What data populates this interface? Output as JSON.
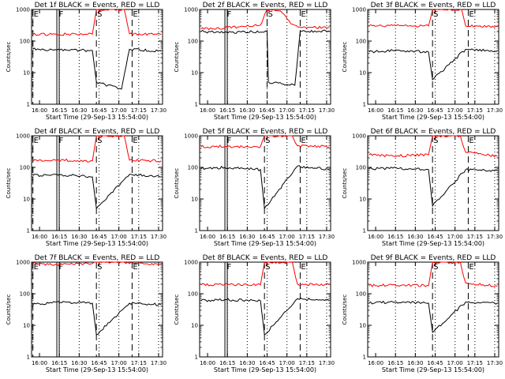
{
  "chart_data": [
    {
      "type": "line",
      "title": "Det 1f BLACK = Events, RED = LLD",
      "xlabel": "Start Time (29-Sep-13 15:54:00)",
      "ylabel": "Counts/sec",
      "y_scale": "log",
      "ylim": [
        1,
        1000
      ],
      "y_ticks": [
        "1",
        "10",
        "100",
        "1000"
      ],
      "x_ticks": [
        "16:00",
        "16:15",
        "16:30",
        "16:45",
        "17:00",
        "17:15",
        "17:30"
      ],
      "markers": [
        {
          "label": "E",
          "at": "15:55"
        },
        {
          "label": "F",
          "at": "16:14"
        },
        {
          "label": "S",
          "at": "16:43"
        },
        {
          "label": "E",
          "at": "17:10"
        }
      ],
      "series": [
        {
          "color": "#000000",
          "values": [
            {
              "x": "15:55",
              "y": 55
            },
            {
              "x": "16:13",
              "y": 52
            },
            {
              "x": "16:40",
              "y": 50
            },
            {
              "x": "16:43",
              "y": 5
            },
            {
              "x": "17:02",
              "y": 3
            },
            {
              "x": "17:08",
              "y": 55
            },
            {
              "x": "17:32",
              "y": 48
            }
          ]
        },
        {
          "color": "#ff0000",
          "values": [
            {
              "x": "15:55",
              "y": 160
            },
            {
              "x": "16:13",
              "y": 165
            },
            {
              "x": "16:40",
              "y": 165
            },
            {
              "x": "16:43",
              "y": 1000
            },
            {
              "x": "17:04",
              "y": 1000
            },
            {
              "x": "17:08",
              "y": 170
            },
            {
              "x": "17:32",
              "y": 160
            }
          ]
        }
      ]
    },
    {
      "type": "line",
      "title": "Det 2f BLACK = Events, RED = LLD",
      "xlabel": "Start Time (29-Sep-13 15:54:00)",
      "ylabel": "Counts/sec",
      "y_scale": "log",
      "ylim": [
        1,
        1000
      ],
      "y_ticks": [
        "1",
        "10",
        "100",
        "1000"
      ],
      "x_ticks": [
        "16:00",
        "16:15",
        "16:30",
        "16:45",
        "17:00",
        "17:15",
        "17:30"
      ],
      "markers": [
        {
          "label": "F",
          "at": "16:14"
        },
        {
          "label": "S",
          "at": "16:45"
        },
        {
          "label": "E",
          "at": "17:10"
        }
      ],
      "series": [
        {
          "color": "#000000",
          "values": [
            {
              "x": "15:55",
              "y": 200
            },
            {
              "x": "16:13",
              "y": 190
            },
            {
              "x": "16:45",
              "y": 200
            },
            {
              "x": "16:46",
              "y": 5
            },
            {
              "x": "17:06",
              "y": 4
            },
            {
              "x": "17:10",
              "y": 200
            },
            {
              "x": "17:32",
              "y": 210
            }
          ]
        },
        {
          "color": "#ff0000",
          "values": [
            {
              "x": "15:55",
              "y": 240
            },
            {
              "x": "16:13",
              "y": 260
            },
            {
              "x": "16:40",
              "y": 320
            },
            {
              "x": "16:45",
              "y": 1000
            },
            {
              "x": "16:55",
              "y": 900
            },
            {
              "x": "17:03",
              "y": 350
            },
            {
              "x": "17:10",
              "y": 280
            },
            {
              "x": "17:32",
              "y": 270
            }
          ]
        }
      ]
    },
    {
      "type": "line",
      "title": "Det 3f BLACK = Events, RED = LLD",
      "xlabel": "Start Time (29-Sep-13 15:54:00)",
      "ylabel": "Counts/sec",
      "y_scale": "log",
      "ylim": [
        1,
        1000
      ],
      "y_ticks": [
        "1",
        "10",
        "100",
        "1000"
      ],
      "x_ticks": [
        "16:00",
        "16:15",
        "16:30",
        "16:45",
        "17:00",
        "17:15",
        "17:30"
      ],
      "markers": [
        {
          "label": "S",
          "at": "16:43"
        },
        {
          "label": "E",
          "at": "17:10"
        }
      ],
      "series": [
        {
          "color": "#000000",
          "values": [
            {
              "x": "15:55",
              "y": 45
            },
            {
              "x": "16:13",
              "y": 50
            },
            {
              "x": "16:40",
              "y": 45
            },
            {
              "x": "16:43",
              "y": 6
            },
            {
              "x": "17:08",
              "y": 55
            },
            {
              "x": "17:32",
              "y": 48
            }
          ]
        },
        {
          "color": "#ff0000",
          "values": [
            {
              "x": "15:55",
              "y": 300
            },
            {
              "x": "16:13",
              "y": 310
            },
            {
              "x": "16:40",
              "y": 300
            },
            {
              "x": "16:43",
              "y": 1000
            },
            {
              "x": "17:05",
              "y": 1000
            },
            {
              "x": "17:08",
              "y": 300
            },
            {
              "x": "17:32",
              "y": 280
            }
          ]
        }
      ]
    },
    {
      "type": "line",
      "title": "Det 4f BLACK = Events, RED = LLD",
      "xlabel": "Start Time (29-Sep-13 15:54:00)",
      "ylabel": "Counts/sec",
      "y_scale": "log",
      "ylim": [
        1,
        1000
      ],
      "y_ticks": [
        "1",
        "10",
        "100",
        "1000"
      ],
      "x_ticks": [
        "16:00",
        "16:15",
        "16:30",
        "16:45",
        "17:00",
        "17:15",
        "17:30"
      ],
      "markers": [
        {
          "label": "E",
          "at": "15:55"
        },
        {
          "label": "F",
          "at": "16:14"
        },
        {
          "label": "S",
          "at": "16:43"
        },
        {
          "label": "E",
          "at": "17:10"
        }
      ],
      "series": [
        {
          "color": "#000000",
          "values": [
            {
              "x": "15:55",
              "y": 55
            },
            {
              "x": "16:13",
              "y": 60
            },
            {
              "x": "16:40",
              "y": 50
            },
            {
              "x": "16:43",
              "y": 5
            },
            {
              "x": "17:08",
              "y": 60
            },
            {
              "x": "17:32",
              "y": 50
            }
          ]
        },
        {
          "color": "#ff0000",
          "values": [
            {
              "x": "15:55",
              "y": 160
            },
            {
              "x": "16:13",
              "y": 170
            },
            {
              "x": "16:40",
              "y": 160
            },
            {
              "x": "16:43",
              "y": 1000
            },
            {
              "x": "17:04",
              "y": 1000
            },
            {
              "x": "17:08",
              "y": 170
            },
            {
              "x": "17:32",
              "y": 160
            }
          ]
        }
      ]
    },
    {
      "type": "line",
      "title": "Det 5f BLACK = Events, RED = LLD",
      "xlabel": "Start Time (29-Sep-13 15:54:00)",
      "ylabel": "Counts/sec",
      "y_scale": "log",
      "ylim": [
        1,
        1000
      ],
      "y_ticks": [
        "1",
        "10",
        "100",
        "1000"
      ],
      "x_ticks": [
        "16:00",
        "16:15",
        "16:30",
        "16:45",
        "17:00",
        "17:15",
        "17:30"
      ],
      "markers": [
        {
          "label": "F",
          "at": "16:14"
        },
        {
          "label": "S",
          "at": "16:43"
        },
        {
          "label": "E",
          "at": "17:10"
        }
      ],
      "series": [
        {
          "color": "#000000",
          "values": [
            {
              "x": "15:55",
              "y": 90
            },
            {
              "x": "16:13",
              "y": 100
            },
            {
              "x": "16:40",
              "y": 85
            },
            {
              "x": "16:43",
              "y": 5
            },
            {
              "x": "17:08",
              "y": 110
            },
            {
              "x": "17:32",
              "y": 85
            }
          ]
        },
        {
          "color": "#ff0000",
          "values": [
            {
              "x": "15:55",
              "y": 450
            },
            {
              "x": "16:13",
              "y": 460
            },
            {
              "x": "16:40",
              "y": 450
            },
            {
              "x": "16:43",
              "y": 1000
            },
            {
              "x": "17:04",
              "y": 1000
            },
            {
              "x": "17:08",
              "y": 480
            },
            {
              "x": "17:32",
              "y": 450
            }
          ]
        }
      ]
    },
    {
      "type": "line",
      "title": "Det 6f BLACK = Events, RED = LLD",
      "xlabel": "Start Time (29-Sep-13 15:54:00)",
      "ylabel": "Counts/sec",
      "y_scale": "log",
      "ylim": [
        1,
        1000
      ],
      "y_ticks": [
        "1",
        "10",
        "100",
        "1000"
      ],
      "x_ticks": [
        "16:00",
        "16:15",
        "16:30",
        "16:45",
        "17:00",
        "17:15",
        "17:30"
      ],
      "markers": [
        {
          "label": "S",
          "at": "16:43"
        },
        {
          "label": "E",
          "at": "17:10"
        }
      ],
      "series": [
        {
          "color": "#000000",
          "values": [
            {
              "x": "15:55",
              "y": 90
            },
            {
              "x": "16:13",
              "y": 95
            },
            {
              "x": "16:40",
              "y": 85
            },
            {
              "x": "16:43",
              "y": 6
            },
            {
              "x": "17:08",
              "y": 85
            },
            {
              "x": "17:32",
              "y": 80
            }
          ]
        },
        {
          "color": "#ff0000",
          "values": [
            {
              "x": "15:55",
              "y": 250
            },
            {
              "x": "16:13",
              "y": 230
            },
            {
              "x": "16:40",
              "y": 250
            },
            {
              "x": "16:43",
              "y": 1000
            },
            {
              "x": "17:04",
              "y": 1000
            },
            {
              "x": "17:08",
              "y": 300
            },
            {
              "x": "17:32",
              "y": 230
            }
          ]
        }
      ]
    },
    {
      "type": "line",
      "title": "Det 7f BLACK = Events, RED = LLD",
      "xlabel": "Start Time (29-Sep-13 15:54:00)",
      "ylabel": "Counts/sec",
      "y_scale": "log",
      "ylim": [
        1,
        1000
      ],
      "y_ticks": [
        "1",
        "10",
        "100",
        "1000"
      ],
      "x_ticks": [
        "16:00",
        "16:15",
        "16:30",
        "16:45",
        "17:00",
        "17:15",
        "17:30"
      ],
      "markers": [
        {
          "label": "E",
          "at": "15:55"
        },
        {
          "label": "F",
          "at": "16:14"
        },
        {
          "label": "S",
          "at": "16:43"
        },
        {
          "label": "E",
          "at": "17:10"
        }
      ],
      "series": [
        {
          "color": "#000000",
          "values": [
            {
              "x": "15:55",
              "y": 45
            },
            {
              "x": "16:13",
              "y": 55
            },
            {
              "x": "16:40",
              "y": 50
            },
            {
              "x": "16:43",
              "y": 5
            },
            {
              "x": "17:08",
              "y": 50
            },
            {
              "x": "17:32",
              "y": 45
            }
          ]
        },
        {
          "color": "#ff0000",
          "values": [
            {
              "x": "15:55",
              "y": 900
            },
            {
              "x": "16:13",
              "y": 850
            },
            {
              "x": "16:40",
              "y": 900
            },
            {
              "x": "16:43",
              "y": 1000
            },
            {
              "x": "17:04",
              "y": 1000
            },
            {
              "x": "17:08",
              "y": 900
            },
            {
              "x": "17:32",
              "y": 880
            }
          ]
        }
      ]
    },
    {
      "type": "line",
      "title": "Det 8f BLACK = Events, RED = LLD",
      "xlabel": "Start Time (29-Sep-13 15:54:00)",
      "ylabel": "Counts/sec",
      "y_scale": "log",
      "ylim": [
        1,
        1000
      ],
      "y_ticks": [
        "1",
        "10",
        "100",
        "1000"
      ],
      "x_ticks": [
        "16:00",
        "16:15",
        "16:30",
        "16:45",
        "17:00",
        "17:15",
        "17:30"
      ],
      "markers": [
        {
          "label": "F",
          "at": "16:14"
        },
        {
          "label": "S",
          "at": "16:43"
        },
        {
          "label": "E",
          "at": "17:10"
        }
      ],
      "series": [
        {
          "color": "#000000",
          "values": [
            {
              "x": "15:55",
              "y": 60
            },
            {
              "x": "16:13",
              "y": 65
            },
            {
              "x": "16:40",
              "y": 60
            },
            {
              "x": "16:43",
              "y": 5
            },
            {
              "x": "17:08",
              "y": 70
            },
            {
              "x": "17:32",
              "y": 60
            }
          ]
        },
        {
          "color": "#ff0000",
          "values": [
            {
              "x": "15:55",
              "y": 190
            },
            {
              "x": "16:13",
              "y": 200
            },
            {
              "x": "16:40",
              "y": 190
            },
            {
              "x": "16:43",
              "y": 1000
            },
            {
              "x": "17:04",
              "y": 1000
            },
            {
              "x": "17:08",
              "y": 200
            },
            {
              "x": "17:32",
              "y": 190
            }
          ]
        }
      ]
    },
    {
      "type": "line",
      "title": "Det 9f BLACK = Events, RED = LLD",
      "xlabel": "Start Time (29-Sep-13 15:54:00)",
      "ylabel": "Counts/sec",
      "y_scale": "log",
      "ylim": [
        1,
        1000
      ],
      "y_ticks": [
        "1",
        "10",
        "100",
        "1000"
      ],
      "x_ticks": [
        "16:00",
        "16:15",
        "16:30",
        "16:45",
        "17:00",
        "17:15",
        "17:30"
      ],
      "markers": [
        {
          "label": "S",
          "at": "16:43"
        },
        {
          "label": "E",
          "at": "17:10"
        }
      ],
      "series": [
        {
          "color": "#000000",
          "values": [
            {
              "x": "15:55",
              "y": 50
            },
            {
              "x": "16:13",
              "y": 55
            },
            {
              "x": "16:40",
              "y": 50
            },
            {
              "x": "16:43",
              "y": 6
            },
            {
              "x": "17:08",
              "y": 55
            },
            {
              "x": "17:32",
              "y": 50
            }
          ]
        },
        {
          "color": "#ff0000",
          "values": [
            {
              "x": "15:55",
              "y": 180
            },
            {
              "x": "16:13",
              "y": 190
            },
            {
              "x": "16:40",
              "y": 180
            },
            {
              "x": "16:43",
              "y": 1000
            },
            {
              "x": "17:04",
              "y": 1000
            },
            {
              "x": "17:08",
              "y": 220
            },
            {
              "x": "17:32",
              "y": 170
            }
          ]
        }
      ]
    }
  ]
}
